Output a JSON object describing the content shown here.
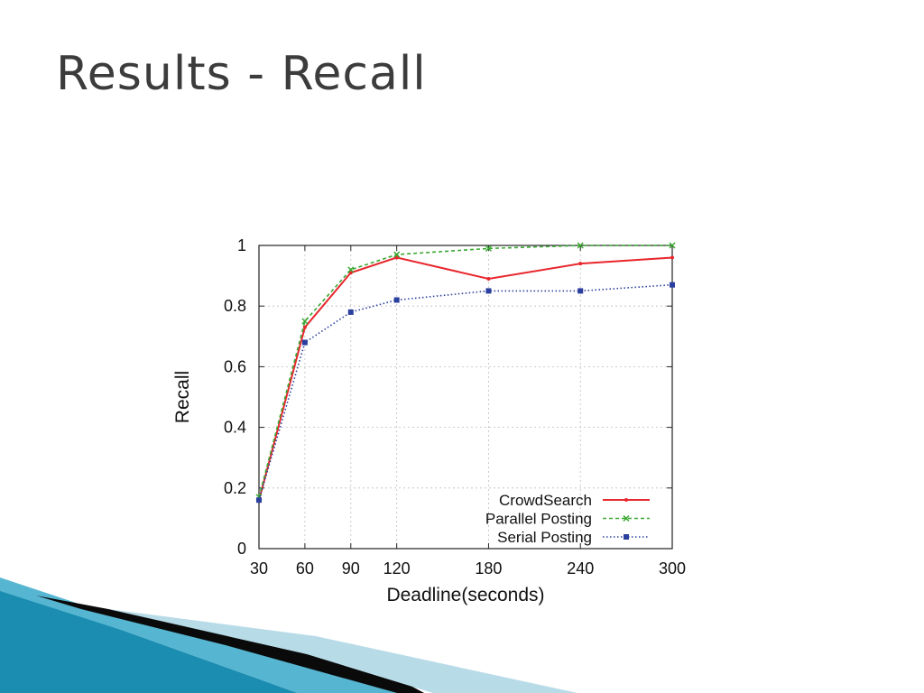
{
  "slide": {
    "title": "Results - Recall"
  },
  "chart_data": {
    "type": "line",
    "xlabel": "Deadline(seconds)",
    "ylabel": "Recall",
    "x": [
      30,
      60,
      90,
      120,
      180,
      240,
      300
    ],
    "x_ticks": [
      "30",
      "60",
      "90",
      "120",
      "180",
      "240",
      "300"
    ],
    "y_ticks": [
      "0",
      "0.2",
      "0.4",
      "0.6",
      "0.8",
      "1"
    ],
    "xlim": [
      30,
      300
    ],
    "ylim": [
      0,
      1
    ],
    "grid": true,
    "legend_position": "bottom-right",
    "series": [
      {
        "name": "CrowdSearch",
        "values": [
          0.16,
          0.73,
          0.91,
          0.96,
          0.89,
          0.94,
          0.96
        ],
        "color": "#e8262d",
        "style": "solid",
        "marker": "dot"
      },
      {
        "name": "Parallel Posting",
        "values": [
          0.17,
          0.75,
          0.92,
          0.97,
          0.99,
          1.0,
          1.0
        ],
        "color": "#3aa832",
        "style": "dashed",
        "marker": "x"
      },
      {
        "name": "Serial Posting",
        "values": [
          0.16,
          0.68,
          0.78,
          0.82,
          0.85,
          0.85,
          0.87
        ],
        "color": "#2b3f9e",
        "style": "dotted",
        "marker": "square"
      }
    ]
  },
  "colors": {
    "title": "#3c3c3c",
    "decor_teal": "#1b8db0",
    "decor_dark": "#0a0a0a",
    "decor_light": "#b8dbe8"
  }
}
